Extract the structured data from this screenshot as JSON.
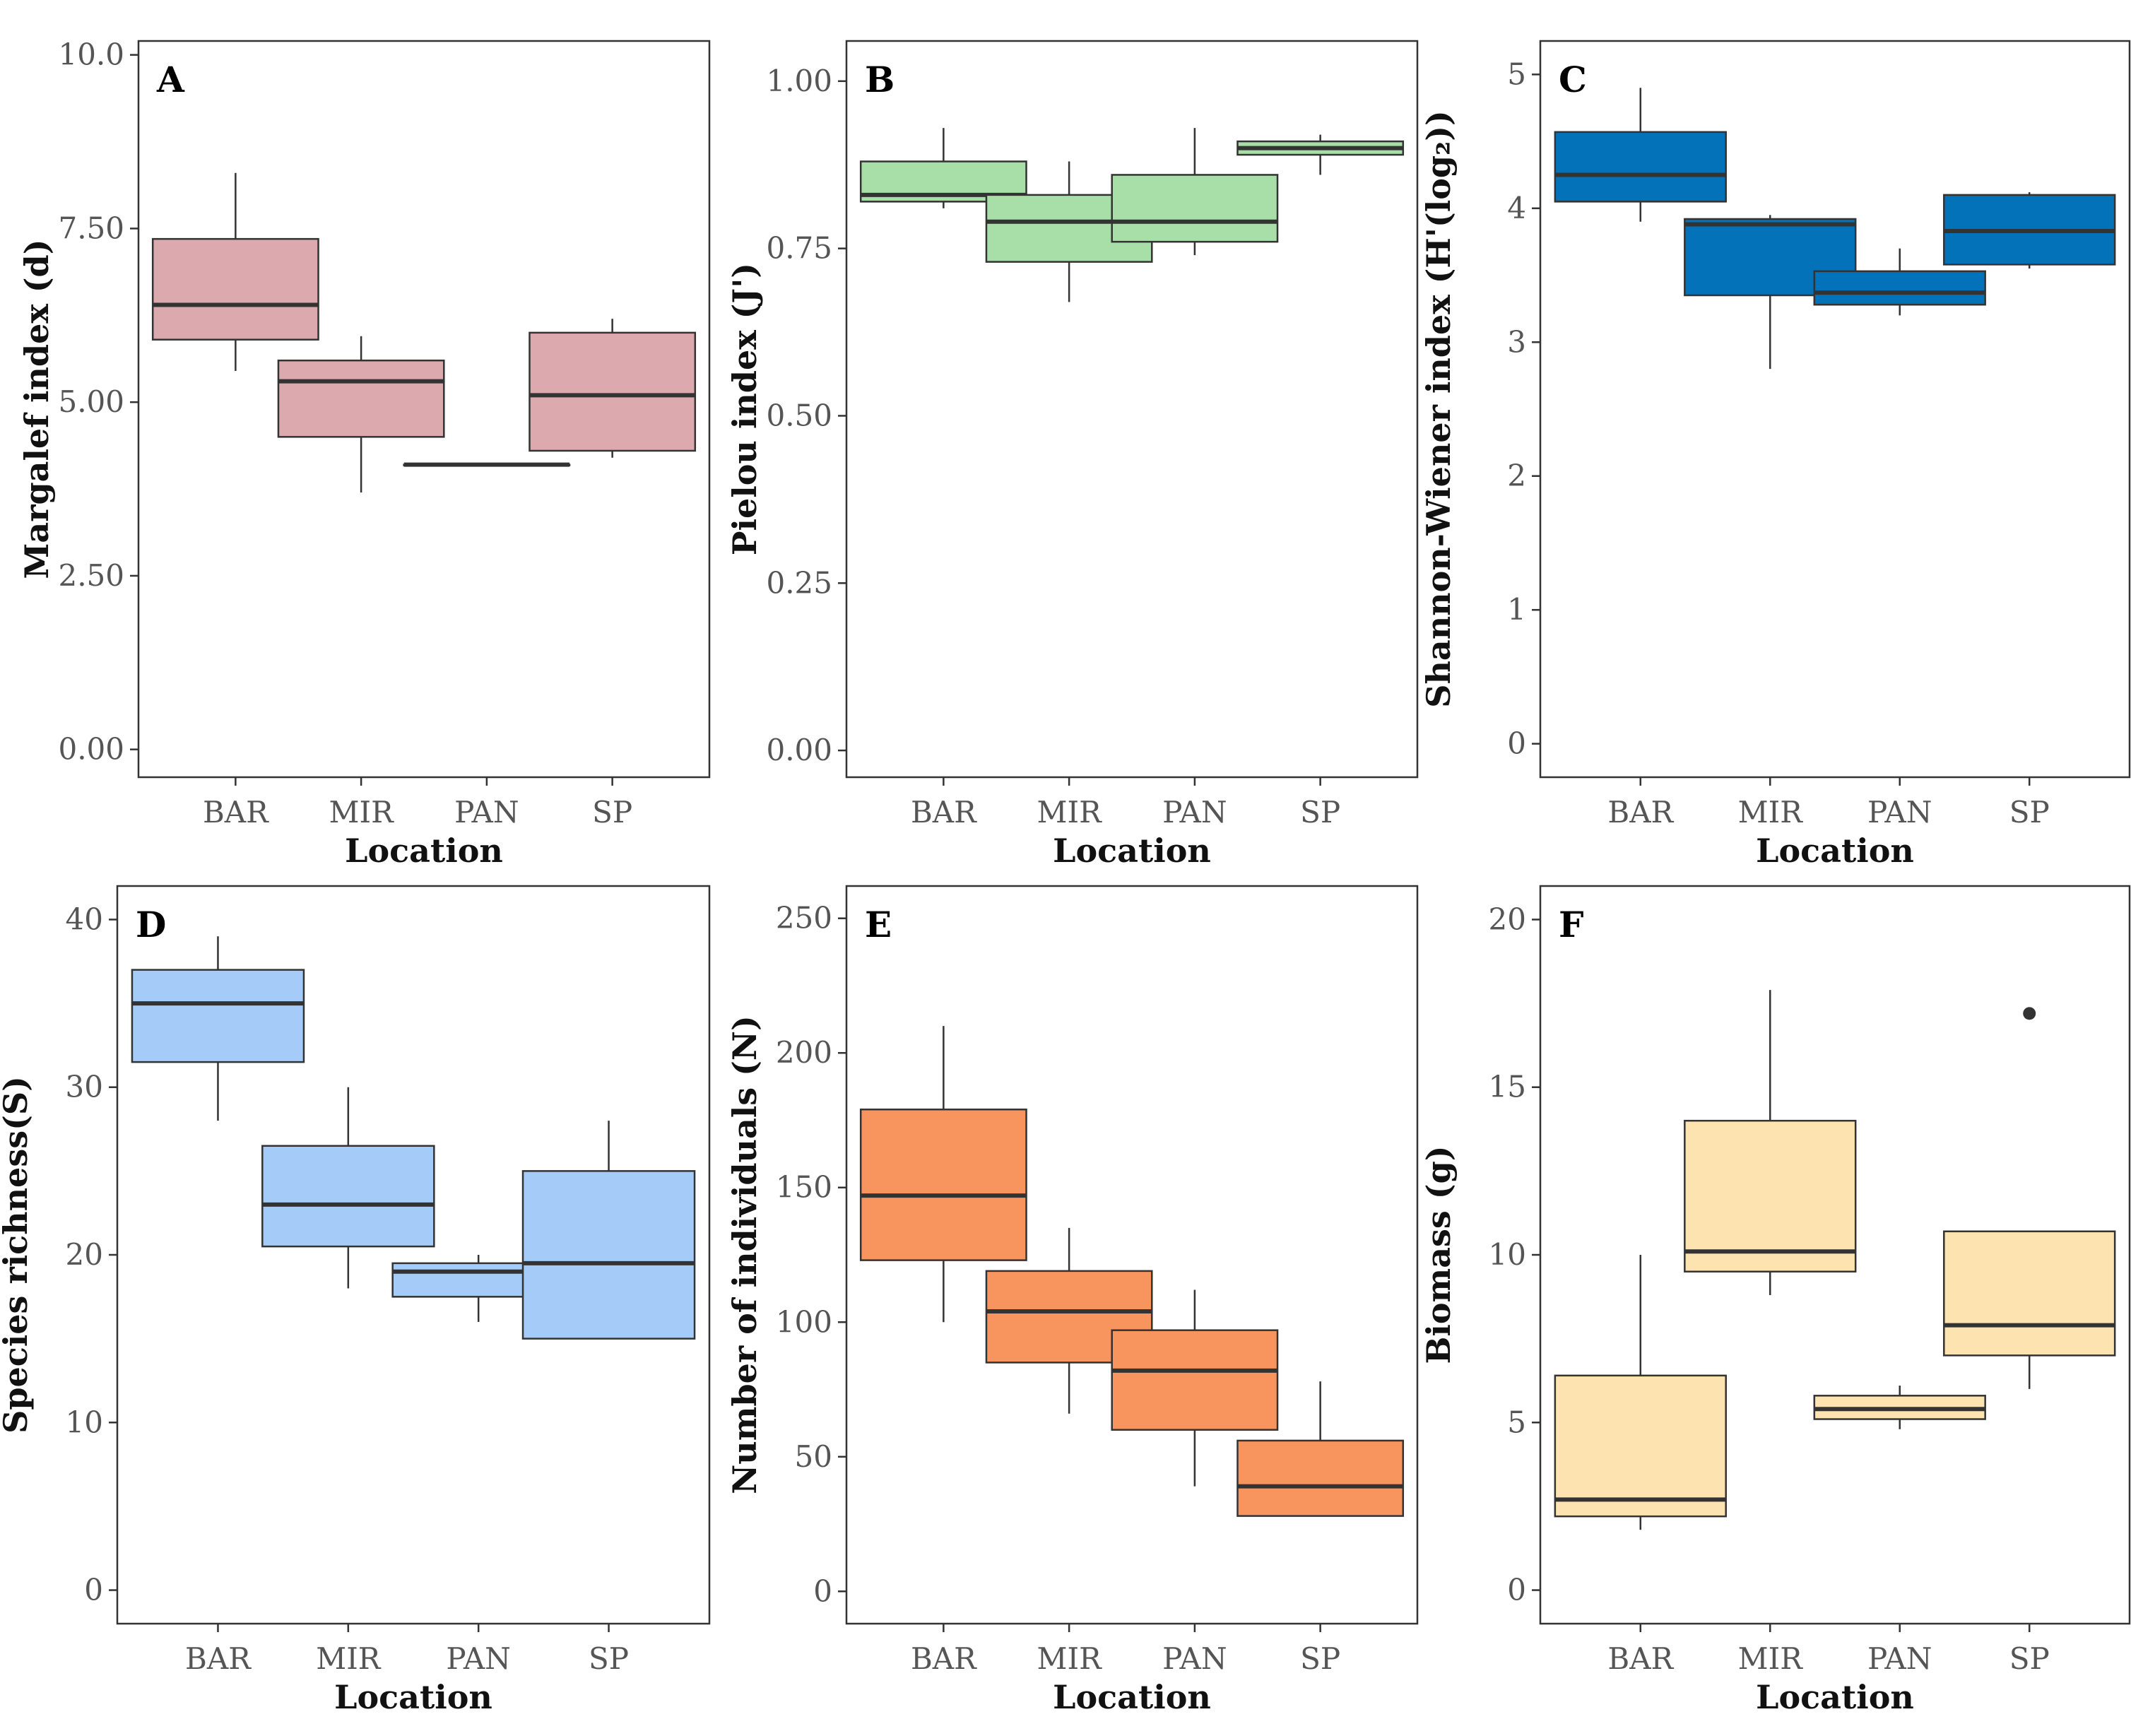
{
  "chart_data": [
    {
      "type": "box",
      "panel_label": "A",
      "title": "",
      "xlabel": "Location",
      "ylabel": "Margalef index (d)",
      "categories": [
        "BAR",
        "MIR",
        "PAN",
        "SP"
      ],
      "ylim": [
        -0.4,
        10.2
      ],
      "yticks": [
        0,
        2.5,
        5,
        7.5,
        10
      ],
      "ytick_labels": [
        "0.00",
        "2.50",
        "5.00",
        "7.50",
        "10.0"
      ],
      "fill": "#DCA9AE",
      "grid": false,
      "boxes": [
        {
          "min": 5.45,
          "q1": 5.9,
          "median": 6.4,
          "q3": 7.35,
          "max": 8.3,
          "outliers": []
        },
        {
          "min": 3.7,
          "q1": 4.5,
          "median": 5.3,
          "q3": 5.6,
          "max": 5.95,
          "outliers": []
        },
        {
          "min": 4.1,
          "q1": 4.1,
          "median": 4.1,
          "q3": 4.1,
          "max": 4.1,
          "outliers": []
        },
        {
          "min": 4.2,
          "q1": 4.3,
          "median": 5.1,
          "q3": 6.0,
          "max": 6.2,
          "outliers": []
        }
      ]
    },
    {
      "type": "box",
      "panel_label": "B",
      "title": "",
      "xlabel": "Location",
      "ylabel": "Pielou index (J')",
      "categories": [
        "BAR",
        "MIR",
        "PAN",
        "SP"
      ],
      "ylim": [
        -0.04,
        1.06
      ],
      "yticks": [
        0,
        0.25,
        0.5,
        0.75,
        1.0
      ],
      "ytick_labels": [
        "0.00",
        "0.25",
        "0.50",
        "0.75",
        "1.00"
      ],
      "fill": "#A8DFA8",
      "grid": false,
      "boxes": [
        {
          "min": 0.81,
          "q1": 0.82,
          "median": 0.83,
          "q3": 0.88,
          "max": 0.93,
          "outliers": []
        },
        {
          "min": 0.67,
          "q1": 0.73,
          "median": 0.79,
          "q3": 0.83,
          "max": 0.88,
          "outliers": []
        },
        {
          "min": 0.74,
          "q1": 0.76,
          "median": 0.79,
          "q3": 0.86,
          "max": 0.93,
          "outliers": []
        },
        {
          "min": 0.86,
          "q1": 0.89,
          "median": 0.9,
          "q3": 0.91,
          "max": 0.92,
          "outliers": []
        }
      ]
    },
    {
      "type": "box",
      "panel_label": "C",
      "title": "",
      "xlabel": "Location",
      "ylabel": "Shannon-Wiener index (H'(log₂))",
      "categories": [
        "BAR",
        "MIR",
        "PAN",
        "SP"
      ],
      "ylim": [
        -0.25,
        5.25
      ],
      "yticks": [
        0,
        1,
        2,
        3,
        4,
        5
      ],
      "ytick_labels": [
        "0",
        "1",
        "2",
        "3",
        "4",
        "5"
      ],
      "fill": "#0472B8",
      "grid": false,
      "boxes": [
        {
          "min": 3.9,
          "q1": 4.05,
          "median": 4.25,
          "q3": 4.57,
          "max": 4.9,
          "outliers": []
        },
        {
          "min": 2.8,
          "q1": 3.35,
          "median": 3.88,
          "q3": 3.92,
          "max": 3.95,
          "outliers": []
        },
        {
          "min": 3.2,
          "q1": 3.28,
          "median": 3.37,
          "q3": 3.53,
          "max": 3.7,
          "outliers": []
        },
        {
          "min": 3.55,
          "q1": 3.58,
          "median": 3.83,
          "q3": 4.1,
          "max": 4.12,
          "outliers": []
        }
      ]
    },
    {
      "type": "box",
      "panel_label": "D",
      "title": "",
      "xlabel": "Location",
      "ylabel": "Species richness(S)",
      "categories": [
        "BAR",
        "MIR",
        "PAN",
        "SP"
      ],
      "ylim": [
        -2,
        42
      ],
      "yticks": [
        0,
        10,
        20,
        30,
        40
      ],
      "ytick_labels": [
        "0",
        "10",
        "20",
        "30",
        "40"
      ],
      "fill": "#A5CCF8",
      "grid": false,
      "boxes": [
        {
          "min": 28,
          "q1": 31.5,
          "median": 35,
          "q3": 37,
          "max": 39,
          "outliers": []
        },
        {
          "min": 18,
          "q1": 20.5,
          "median": 23,
          "q3": 26.5,
          "max": 30,
          "outliers": []
        },
        {
          "min": 16,
          "q1": 17.5,
          "median": 19,
          "q3": 19.5,
          "max": 20,
          "outliers": []
        },
        {
          "min": 15,
          "q1": 15,
          "median": 19.5,
          "q3": 25,
          "max": 28,
          "outliers": []
        }
      ]
    },
    {
      "type": "box",
      "panel_label": "E",
      "title": "",
      "xlabel": "Location",
      "ylabel": "Number of individuals (N)",
      "categories": [
        "BAR",
        "MIR",
        "PAN",
        "SP"
      ],
      "ylim": [
        -12,
        262
      ],
      "yticks": [
        0,
        50,
        100,
        150,
        200,
        250
      ],
      "ytick_labels": [
        "0",
        "50",
        "100",
        "150",
        "200",
        "250"
      ],
      "fill": "#F8945E",
      "grid": false,
      "boxes": [
        {
          "min": 100,
          "q1": 123,
          "median": 147,
          "q3": 179,
          "max": 210,
          "outliers": []
        },
        {
          "min": 66,
          "q1": 85,
          "median": 104,
          "q3": 119,
          "max": 135,
          "outliers": []
        },
        {
          "min": 39,
          "q1": 60,
          "median": 82,
          "q3": 97,
          "max": 112,
          "outliers": []
        },
        {
          "min": 28,
          "q1": 28,
          "median": 39,
          "q3": 56,
          "max": 78,
          "outliers": []
        }
      ]
    },
    {
      "type": "box",
      "panel_label": "F",
      "title": "",
      "xlabel": "Location",
      "ylabel": "Biomass (g)",
      "categories": [
        "BAR",
        "MIR",
        "PAN",
        "SP"
      ],
      "ylim": [
        -1,
        21
      ],
      "yticks": [
        0,
        5,
        10,
        15,
        20
      ],
      "ytick_labels": [
        "0",
        "5",
        "10",
        "15",
        "20"
      ],
      "fill": "#FDE3B0",
      "grid": false,
      "boxes": [
        {
          "min": 1.8,
          "q1": 2.2,
          "median": 2.7,
          "q3": 6.4,
          "max": 10,
          "outliers": []
        },
        {
          "min": 8.8,
          "q1": 9.5,
          "median": 10.1,
          "q3": 14,
          "max": 17.9,
          "outliers": []
        },
        {
          "min": 4.8,
          "q1": 5.1,
          "median": 5.4,
          "q3": 5.8,
          "max": 6.1,
          "outliers": []
        },
        {
          "min": 6,
          "q1": 7,
          "median": 7.9,
          "q3": 10.7,
          "max": 10.7,
          "outliers": [
            17.2
          ]
        }
      ]
    }
  ]
}
